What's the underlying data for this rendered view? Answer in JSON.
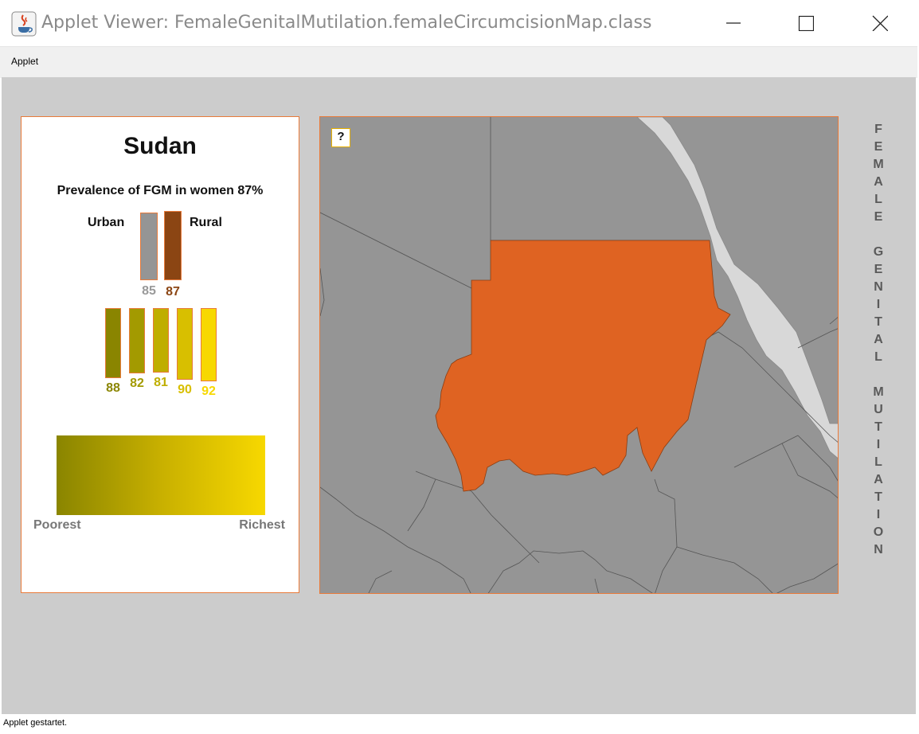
{
  "window": {
    "title": "Applet Viewer: FemaleGenitalMutilation.femaleCircumcisionMap.class",
    "icon": "java-icon"
  },
  "menu": {
    "items": [
      "Applet"
    ]
  },
  "info": {
    "country": "Sudan",
    "prevalence_text": "Prevalence of FGM in women 87%",
    "urban_label": "Urban",
    "rural_label": "Rural",
    "urban_value": 85,
    "rural_value": 87,
    "wealth_values": [
      88,
      82,
      81,
      90,
      92
    ],
    "wealth_colors": [
      "#8a8500",
      "#a39a00",
      "#bfae00",
      "#d8bf00",
      "#f7d800"
    ],
    "poorest_label": "Poorest",
    "richest_label": "Richest"
  },
  "map": {
    "help_label": "?",
    "highlight_color": "#df6322",
    "land_color": "#959595",
    "sea_color": "#d8d8d8"
  },
  "side_title": "FEMALE GENITAL MUTILATION",
  "status": {
    "text": "Applet gestartet."
  }
}
